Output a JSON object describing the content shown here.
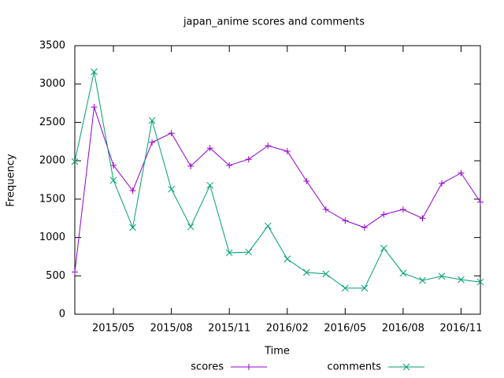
{
  "chart_data": {
    "type": "line",
    "title": "japan_anime scores and comments",
    "xlabel": "Time",
    "ylabel": "Frequency",
    "x": [
      "2015/03",
      "2015/04",
      "2015/05",
      "2015/06",
      "2015/07",
      "2015/08",
      "2015/09",
      "2015/10",
      "2015/11",
      "2015/12",
      "2016/01",
      "2016/02",
      "2016/03",
      "2016/04",
      "2016/05",
      "2016/06",
      "2016/07",
      "2016/08",
      "2016/09",
      "2016/10",
      "2016/11",
      "2016/12"
    ],
    "series": [
      {
        "name": "scores",
        "color": "#9400d3",
        "marker": "plus",
        "values": [
          550,
          2700,
          1940,
          1610,
          2240,
          2360,
          1930,
          2165,
          1940,
          2020,
          2195,
          2125,
          1735,
          1365,
          1220,
          1130,
          1300,
          1365,
          1250,
          1705,
          1840,
          1460
        ]
      },
      {
        "name": "comments",
        "color": "#009e73",
        "marker": "cross",
        "values": [
          1990,
          3160,
          1745,
          1130,
          2525,
          1630,
          1140,
          1680,
          800,
          810,
          1150,
          720,
          545,
          525,
          340,
          340,
          860,
          535,
          440,
          495,
          450,
          420
        ]
      }
    ],
    "xlim": [
      "2015/03",
      "2016/12"
    ],
    "xticks": [
      "2015/05",
      "2015/08",
      "2015/11",
      "2016/02",
      "2016/05",
      "2016/08",
      "2016/11"
    ],
    "ylim": [
      0,
      3500
    ],
    "yticks": [
      0,
      500,
      1000,
      1500,
      2000,
      2500,
      3000,
      3500
    ],
    "legend": "bottom"
  }
}
